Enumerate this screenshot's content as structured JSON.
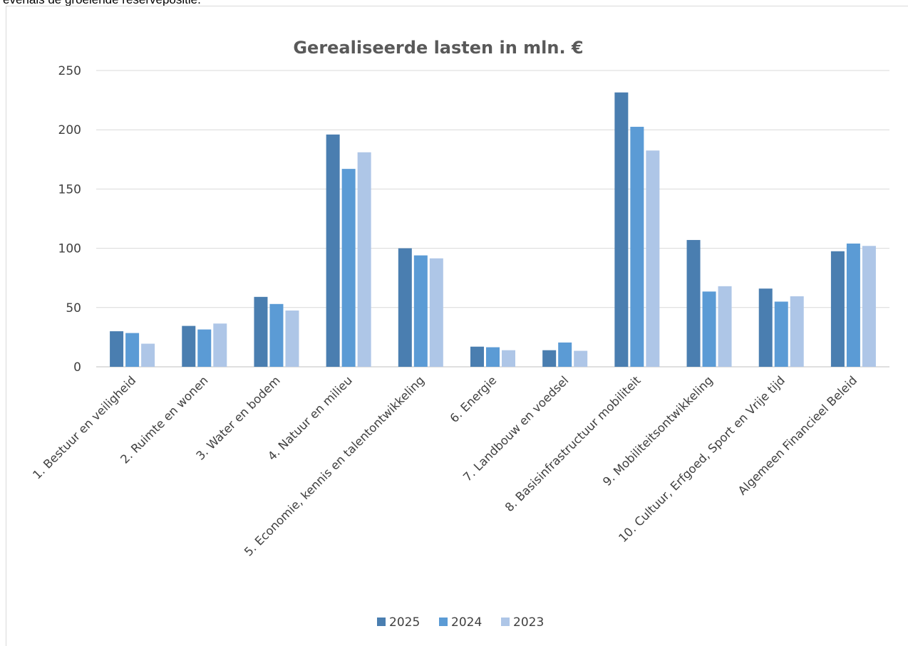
{
  "intro_text": "evenals de groeiende reservepositie.",
  "chart_data": {
    "type": "bar",
    "title": "Gerealiseerde lasten in mln. €",
    "categories": [
      "1. Bestuur en veiligheid",
      "2. Ruimte en wonen",
      "3. Water en bodem",
      "4. Natuur en milieu",
      "5. Economie, kennis en talentontwikkeling",
      "6. Energie",
      "7. Landbouw en voedsel",
      "8. Basisinfrastructuur mobiliteit",
      "9. Mobiliteitsontwikkeling",
      "10. Cultuur, Erfgoed, Sport en Vrije tijd",
      "Algemeen Financieel Beleid"
    ],
    "series": [
      {
        "name": "2025",
        "color": "#4a7eb0",
        "values": [
          30,
          34.5,
          59,
          196,
          100,
          17,
          14,
          231.5,
          107,
          66,
          97.5
        ]
      },
      {
        "name": "2024",
        "color": "#5b9bd5",
        "values": [
          28.5,
          31.5,
          53,
          167,
          94,
          16.5,
          20.5,
          202.5,
          63.5,
          55,
          104
        ]
      },
      {
        "name": "2023",
        "color": "#aec6e7",
        "values": [
          19.5,
          36.5,
          47.5,
          181,
          91.5,
          14,
          13.5,
          182.5,
          68,
          59.5,
          102
        ]
      }
    ],
    "ylim": [
      0,
      250
    ],
    "yticks": [
      "0",
      "50",
      "100",
      "150",
      "200",
      "250"
    ],
    "grid": true,
    "legend_position": "bottom"
  }
}
